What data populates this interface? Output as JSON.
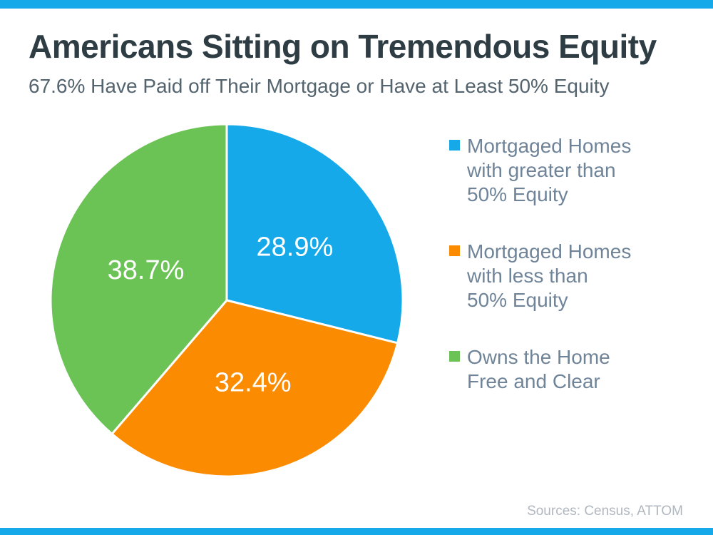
{
  "page": {
    "title": "Americans Sitting on Tremendous Equity",
    "subtitle": "67.6% Have Paid off Their Mortgage or Have at Least 50% Equity",
    "source": "Sources: Census, ATTOM",
    "accent_bar_color": "#16A9EA",
    "background_color": "#FFFFFF",
    "title_color": "#2E3C44",
    "subtitle_color": "#54646E",
    "legend_text_color": "#6F8498",
    "source_text_color": "#B0B7BF"
  },
  "chart_data": {
    "type": "pie",
    "title": "Americans Sitting on Tremendous Equity",
    "subtitle": "67.6% Have Paid off Their Mortgage or Have at Least 50% Equity",
    "source": "Sources: Census, ATTOM",
    "start_angle_deg": 0,
    "direction": "clockwise",
    "legend_position": "right",
    "slice_border_color": "#FFFFFF",
    "label_color": "#FFFFFF",
    "slices": [
      {
        "label": "Mortgaged Homes with greater than 50% Equity",
        "value": 28.9,
        "display": "28.9%",
        "color": "#16A9EA"
      },
      {
        "label": "Mortgaged Homes with less than 50% Equity",
        "value": 32.4,
        "display": "32.4%",
        "color": "#FB8B00"
      },
      {
        "label": "Owns the Home Free and Clear",
        "value": 38.7,
        "display": "38.7%",
        "color": "#6CC355"
      }
    ],
    "legend_items": [
      {
        "lines": [
          "Mortgaged Homes",
          "with greater than",
          "50% Equity"
        ],
        "color": "#16A9EA"
      },
      {
        "lines": [
          "Mortgaged Homes",
          "with less than",
          "50% Equity"
        ],
        "color": "#FB8B00"
      },
      {
        "lines": [
          "Owns the Home",
          "Free and Clear"
        ],
        "color": "#6CC355"
      }
    ]
  }
}
